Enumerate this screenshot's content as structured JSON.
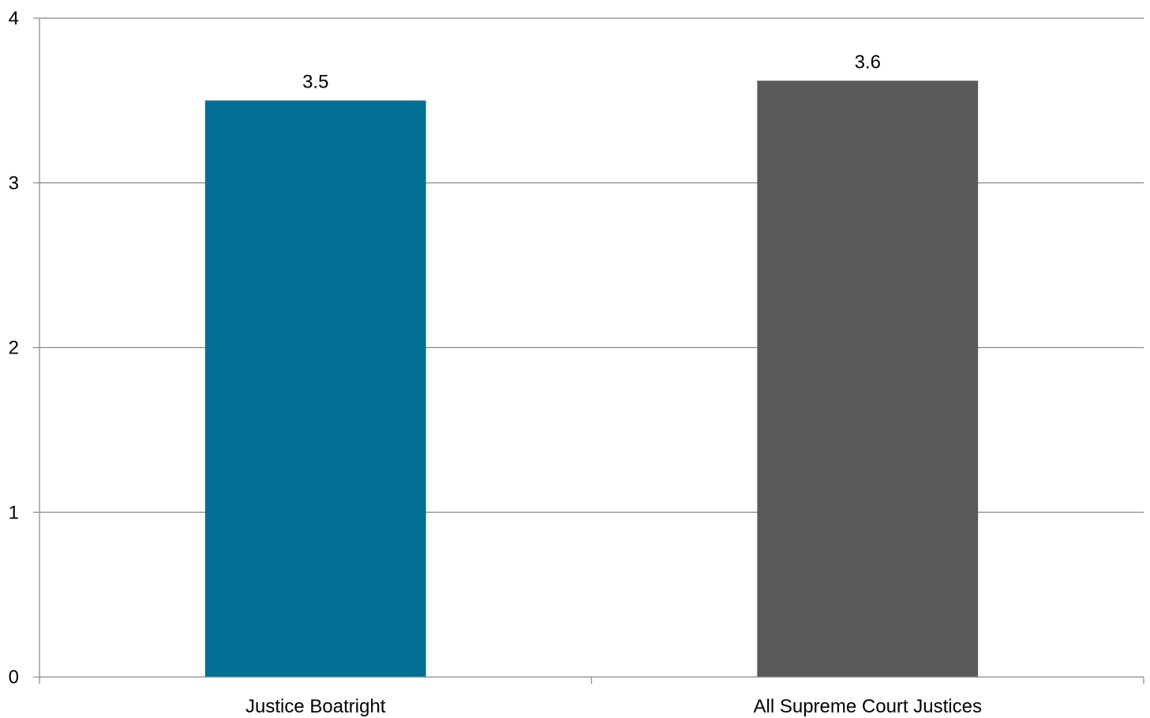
{
  "chart_data": {
    "type": "bar",
    "categories": [
      "Justice Boatright",
      "All Supreme Court Justices"
    ],
    "values": [
      3.5,
      3.62
    ],
    "data_labels": [
      "3.5",
      "3.6"
    ],
    "bar_colors": [
      "#036f94",
      "#595959"
    ],
    "ylim": [
      0,
      4
    ],
    "yticks": [
      0,
      1,
      2,
      3,
      4
    ],
    "ytick_labels": [
      "0",
      "1",
      "2",
      "3",
      "4"
    ],
    "grid": true,
    "gridline_color": "#888888",
    "title": "",
    "xlabel": "",
    "ylabel": "",
    "legend": "none"
  }
}
